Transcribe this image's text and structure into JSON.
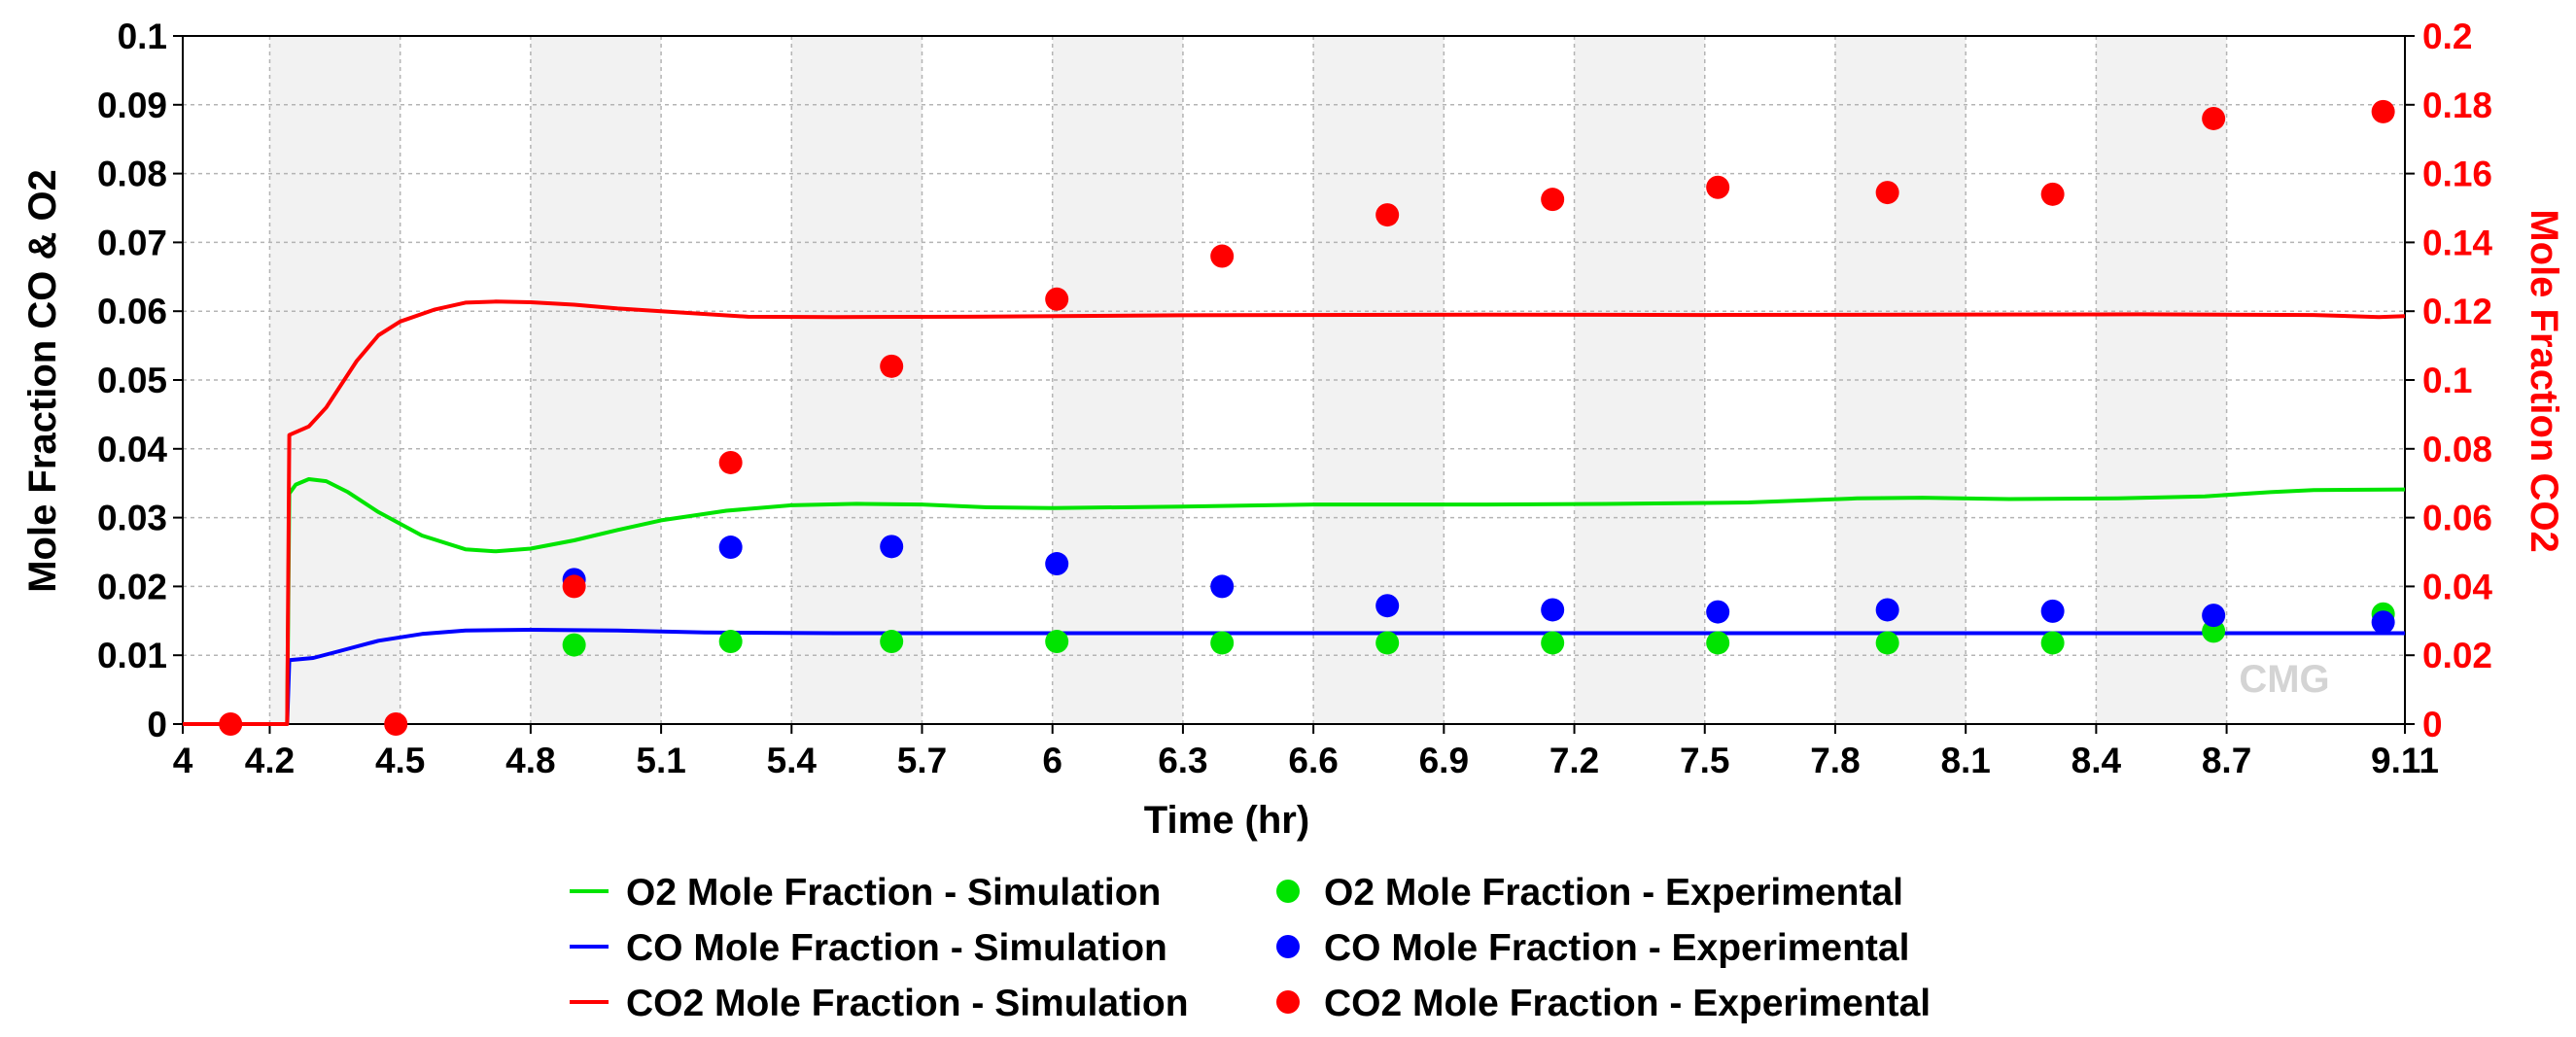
{
  "watermark": "CMG",
  "chart_data": {
    "type": "line",
    "title": "",
    "xlabel": "Time (hr)",
    "ylabel_left": "Mole Fraction CO & O2",
    "ylabel_right": "Mole Fraction CO2",
    "xlim": [
      4,
      9.11
    ],
    "ylim_left": [
      0,
      0.1
    ],
    "ylim_right": [
      0,
      0.2
    ],
    "x_ticks": [
      "4",
      "4.2",
      "4.5",
      "4.8",
      "5.1",
      "5.4",
      "5.7",
      "6",
      "6.3",
      "6.6",
      "6.9",
      "7.2",
      "7.5",
      "7.8",
      "8.1",
      "8.4",
      "8.7",
      "9.11"
    ],
    "x_tick_values": [
      4,
      4.2,
      4.5,
      4.8,
      5.1,
      5.4,
      5.7,
      6,
      6.3,
      6.6,
      6.9,
      7.2,
      7.5,
      7.8,
      8.1,
      8.4,
      8.7,
      9.11
    ],
    "y_left_ticks": [
      "0",
      "0.01",
      "0.02",
      "0.03",
      "0.04",
      "0.05",
      "0.06",
      "0.07",
      "0.08",
      "0.09",
      "0.1"
    ],
    "y_right_ticks": [
      "0",
      "0.02",
      "0.04",
      "0.06",
      "0.08",
      "0.1",
      "0.12",
      "0.14",
      "0.16",
      "0.18",
      "0.2"
    ],
    "grid": true,
    "legend_position": "bottom",
    "series": [
      {
        "name": "O2 Mole Fraction  - Simulation",
        "kind": "line",
        "axis": "left",
        "color": "#00e400",
        "points": [
          [
            4.24,
            0.0
          ],
          [
            4.245,
            0.0335
          ],
          [
            4.26,
            0.0348
          ],
          [
            4.29,
            0.0356
          ],
          [
            4.33,
            0.0353
          ],
          [
            4.38,
            0.0337
          ],
          [
            4.45,
            0.0308
          ],
          [
            4.55,
            0.0274
          ],
          [
            4.65,
            0.0254
          ],
          [
            4.72,
            0.0251
          ],
          [
            4.8,
            0.0255
          ],
          [
            4.9,
            0.0267
          ],
          [
            5.0,
            0.0282
          ],
          [
            5.1,
            0.0296
          ],
          [
            5.25,
            0.031
          ],
          [
            5.4,
            0.0318
          ],
          [
            5.55,
            0.032
          ],
          [
            5.7,
            0.0319
          ],
          [
            5.85,
            0.0315
          ],
          [
            6.0,
            0.0314
          ],
          [
            6.3,
            0.0316
          ],
          [
            6.6,
            0.0319
          ],
          [
            7.0,
            0.0319
          ],
          [
            7.3,
            0.032
          ],
          [
            7.6,
            0.0322
          ],
          [
            7.85,
            0.0328
          ],
          [
            8.0,
            0.0329
          ],
          [
            8.2,
            0.0327
          ],
          [
            8.45,
            0.0328
          ],
          [
            8.65,
            0.0331
          ],
          [
            8.8,
            0.0337
          ],
          [
            8.9,
            0.034
          ],
          [
            9.11,
            0.0341
          ]
        ]
      },
      {
        "name": "CO Mole Fraction - Simulation",
        "kind": "line",
        "axis": "left",
        "color": "#0000ff",
        "points": [
          [
            4.24,
            0.0
          ],
          [
            4.245,
            0.0093
          ],
          [
            4.3,
            0.0096
          ],
          [
            4.36,
            0.0106
          ],
          [
            4.45,
            0.0121
          ],
          [
            4.55,
            0.0131
          ],
          [
            4.65,
            0.0136
          ],
          [
            4.8,
            0.0137
          ],
          [
            5.0,
            0.0136
          ],
          [
            5.2,
            0.0133
          ],
          [
            5.5,
            0.0132
          ],
          [
            6.0,
            0.0132
          ],
          [
            7.0,
            0.0132
          ],
          [
            8.0,
            0.0132
          ],
          [
            9.11,
            0.0132
          ]
        ]
      },
      {
        "name": "CO2 Mole Fraction - Simulation",
        "kind": "line",
        "axis": "right",
        "color": "#ff0000",
        "points": [
          [
            4.0,
            0.0
          ],
          [
            4.24,
            0.0
          ],
          [
            4.245,
            0.084
          ],
          [
            4.29,
            0.0865
          ],
          [
            4.33,
            0.092
          ],
          [
            4.4,
            0.1055
          ],
          [
            4.45,
            0.113
          ],
          [
            4.5,
            0.117
          ],
          [
            4.58,
            0.1205
          ],
          [
            4.65,
            0.1225
          ],
          [
            4.72,
            0.1228
          ],
          [
            4.8,
            0.1226
          ],
          [
            4.9,
            0.1219
          ],
          [
            5.0,
            0.1208
          ],
          [
            5.1,
            0.12
          ],
          [
            5.3,
            0.1184
          ],
          [
            5.5,
            0.1183
          ],
          [
            5.8,
            0.1184
          ],
          [
            6.3,
            0.1188
          ],
          [
            7.0,
            0.119
          ],
          [
            7.5,
            0.1189
          ],
          [
            8.0,
            0.119
          ],
          [
            8.5,
            0.1191
          ],
          [
            8.9,
            0.1189
          ],
          [
            9.05,
            0.1183
          ],
          [
            9.11,
            0.1186
          ]
        ]
      },
      {
        "name": "O2 Mole Fraction  - Experimental",
        "kind": "scatter",
        "axis": "left",
        "color": "#00e400",
        "points": [
          [
            4.9,
            0.0115
          ],
          [
            5.26,
            0.012
          ],
          [
            5.63,
            0.012
          ],
          [
            6.01,
            0.012
          ],
          [
            6.39,
            0.0118
          ],
          [
            6.77,
            0.0118
          ],
          [
            7.15,
            0.0118
          ],
          [
            7.53,
            0.0118
          ],
          [
            7.92,
            0.0118
          ],
          [
            8.3,
            0.0118
          ],
          [
            8.67,
            0.0135
          ],
          [
            9.06,
            0.016
          ]
        ]
      },
      {
        "name": "CO Mole Fraction  - Experimental",
        "kind": "scatter",
        "axis": "left",
        "color": "#0000ff",
        "points": [
          [
            4.9,
            0.021
          ],
          [
            5.26,
            0.0257
          ],
          [
            5.63,
            0.0258
          ],
          [
            6.01,
            0.0233
          ],
          [
            6.39,
            0.02
          ],
          [
            6.77,
            0.0172
          ],
          [
            7.15,
            0.0166
          ],
          [
            7.53,
            0.0163
          ],
          [
            7.92,
            0.0166
          ],
          [
            8.3,
            0.0164
          ],
          [
            8.67,
            0.0158
          ],
          [
            9.06,
            0.0148
          ]
        ]
      },
      {
        "name": "CO2 Mole Fraction - Experimental",
        "kind": "scatter",
        "axis": "right",
        "color": "#ff0000",
        "points": [
          [
            4.11,
            0.0
          ],
          [
            4.49,
            0.0
          ],
          [
            4.9,
            0.04
          ],
          [
            5.26,
            0.076
          ],
          [
            5.63,
            0.104
          ],
          [
            6.01,
            0.1235
          ],
          [
            6.39,
            0.136
          ],
          [
            6.77,
            0.148
          ],
          [
            7.15,
            0.1525
          ],
          [
            7.53,
            0.156
          ],
          [
            7.92,
            0.1545
          ],
          [
            8.3,
            0.154
          ],
          [
            8.67,
            0.176
          ],
          [
            9.06,
            0.178
          ]
        ]
      }
    ]
  }
}
